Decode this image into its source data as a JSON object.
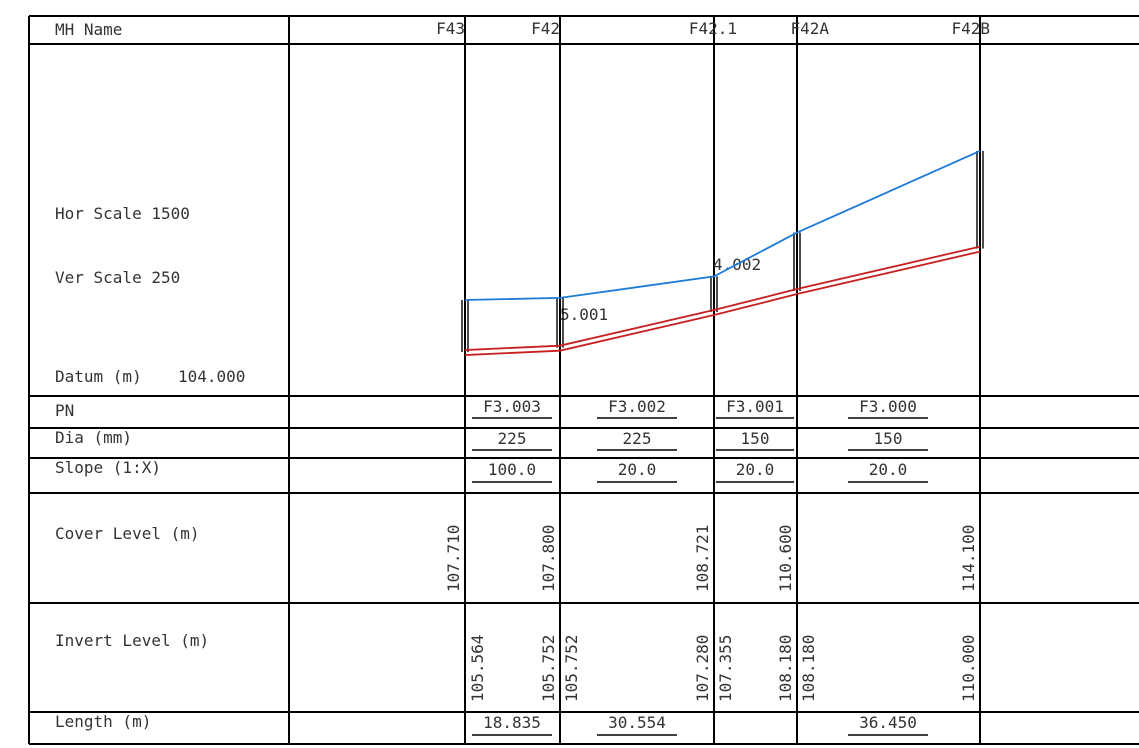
{
  "header": {
    "mh_name_label": "MH Name",
    "manholes": [
      "F43",
      "F42",
      "F42.1",
      "F42A",
      "F42B"
    ]
  },
  "profile": {
    "hor_scale": "Hor Scale 1500",
    "ver_scale": "Ver Scale 250",
    "datum_label": "Datum (m)",
    "datum_value": "104.000",
    "pipe_tags": [
      "5.001",
      "4.002"
    ]
  },
  "rows": {
    "pn": {
      "label": "PN",
      "values": [
        "F3.003",
        "F3.002",
        "F3.001",
        "F3.000"
      ]
    },
    "dia": {
      "label": "Dia (mm)",
      "values": [
        "225",
        "225",
        "150",
        "150"
      ]
    },
    "slope": {
      "label": "Slope (1:X)",
      "values": [
        "100.0",
        "20.0",
        "20.0",
        "20.0"
      ]
    },
    "cover": {
      "label": "Cover Level (m)",
      "values": [
        "107.710",
        "107.800",
        "108.721",
        "110.600",
        "114.100"
      ]
    },
    "invert": {
      "label": "Invert Level (m)",
      "values": [
        "105.564",
        "105.752",
        "105.752",
        "107.280",
        "107.355",
        "108.180",
        "108.180",
        "110.000"
      ]
    },
    "length": {
      "label": "Length (m)",
      "values": [
        "18.835",
        "30.554",
        "",
        "36.450"
      ]
    }
  },
  "chart_data": {
    "type": "line",
    "x_label": "",
    "y_label": "",
    "series": [
      {
        "values": [
          107.71,
          107.8,
          108.721,
          110.6,
          114.1
        ]
      },
      {
        "values": [
          105.564,
          105.752,
          107.28,
          108.18,
          110.0
        ]
      }
    ],
    "colors": {
      "ground": "#1e7bd8",
      "pipe": "#c82020",
      "grid": "#000000"
    }
  }
}
